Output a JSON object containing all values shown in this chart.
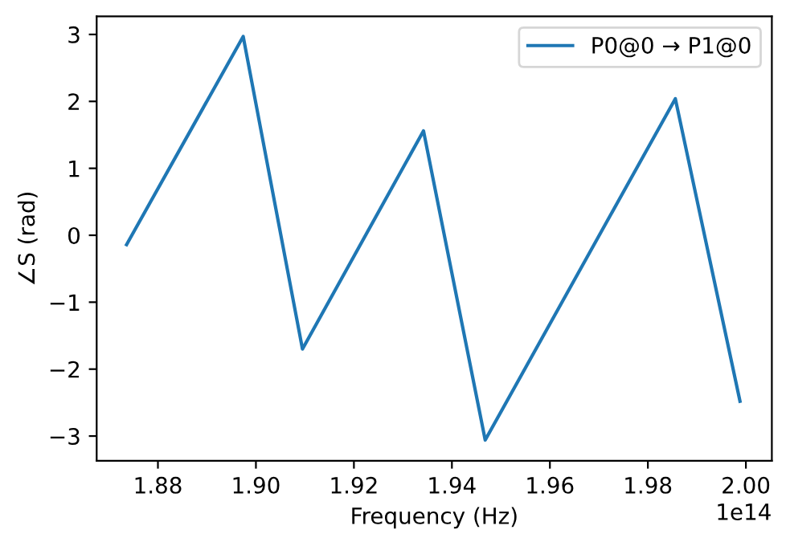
{
  "chart_data": {
    "type": "line",
    "xlabel": "Frequency (Hz)",
    "ylabel": "∠S (rad)",
    "x": [
      1.8736,
      1.8974,
      1.9095,
      1.9342,
      1.9468,
      1.9856,
      1.9988
    ],
    "series": [
      {
        "name": "P0@0 → P1@0",
        "color": "#1f77b4",
        "values": [
          -0.14,
          2.97,
          -1.7,
          1.56,
          -3.06,
          2.04,
          -2.48
        ]
      }
    ],
    "xlim": [
      1.8675,
      2.0053
    ],
    "ylim": [
      -3.37,
      3.27
    ],
    "xticks": [
      1.88,
      {
        "value": 1.9,
        "label": "1.90"
      },
      1.92,
      1.94,
      1.96,
      1.98,
      {
        "value": 2.0,
        "label": "2.00"
      }
    ],
    "yticks": [
      {
        "value": -3,
        "label": "−3"
      },
      {
        "value": -2,
        "label": "−2"
      },
      {
        "value": -1,
        "label": "−1"
      },
      0,
      1,
      2,
      3
    ],
    "annotations": [
      "1e14"
    ],
    "legend": "top right",
    "grid": false,
    "marker": "none",
    "line_style": "solid"
  }
}
